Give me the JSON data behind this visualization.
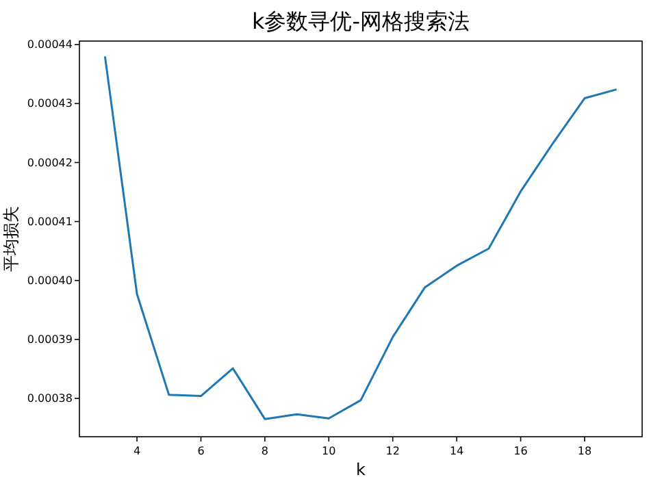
{
  "chart_data": {
    "type": "line",
    "title": "k参数寻优-网格搜索法",
    "xlabel": "k",
    "ylabel": "平均损失",
    "x": [
      3,
      4,
      5,
      6,
      7,
      8,
      9,
      10,
      11,
      12,
      13,
      14,
      15,
      16,
      17,
      18,
      19
    ],
    "series": [
      {
        "color": "#1f77b4",
        "values": [
          0.000438,
          0.0003977,
          0.0003806,
          0.0003804,
          0.0003851,
          0.0003765,
          0.0003773,
          0.0003766,
          0.0003797,
          0.0003904,
          0.0003988,
          0.0004025,
          0.0004054,
          0.0004151,
          0.0004232,
          0.0004309,
          0.0004324
        ]
      }
    ],
    "xlim": [
      2.2,
      19.8
    ],
    "ylim": [
      0.0003735,
      0.0004406
    ],
    "xticks": [
      4,
      6,
      8,
      10,
      12,
      14,
      16,
      18
    ],
    "yticks": [
      {
        "value": 0.00038,
        "label": "0.00038"
      },
      {
        "value": 0.00039,
        "label": "0.00039"
      },
      {
        "value": 0.0004,
        "label": "0.00040"
      },
      {
        "value": 0.00041,
        "label": "0.00041"
      },
      {
        "value": 0.00042,
        "label": "0.00042"
      },
      {
        "value": 0.00043,
        "label": "0.00043"
      },
      {
        "value": 0.00044,
        "label": "0.00044"
      }
    ],
    "grid": false,
    "marker": "none",
    "line_style": "solid"
  }
}
